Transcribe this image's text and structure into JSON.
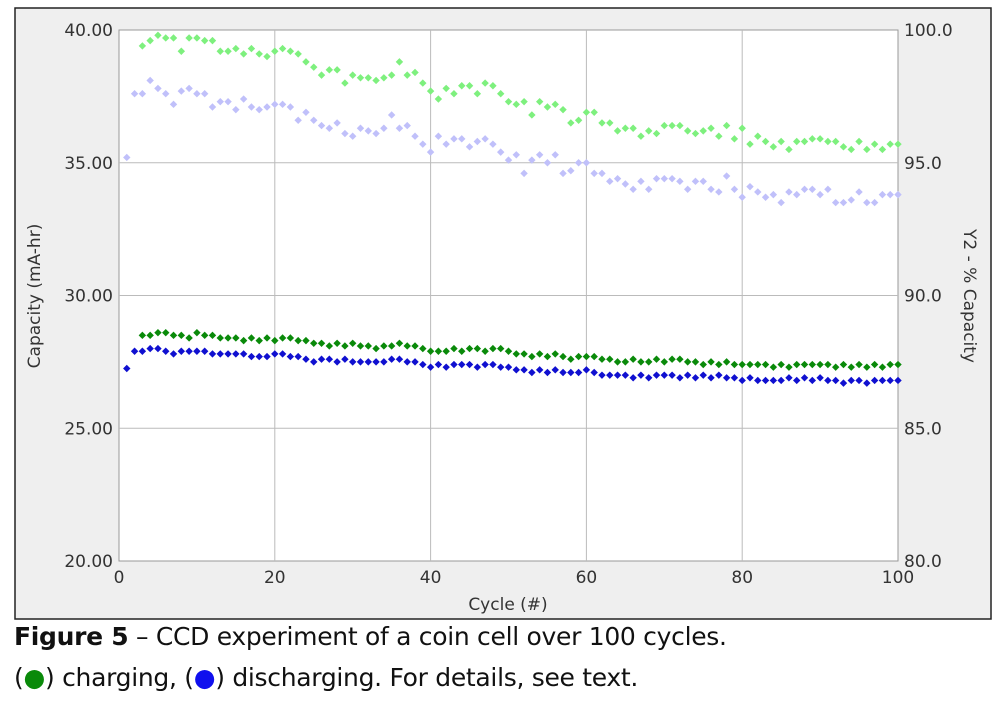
{
  "chart_data": {
    "type": "scatter",
    "xlabel": "Cycle (#)",
    "ylabel": "Capacity (mA-hr)",
    "y2label": "Y2 - % Capacity",
    "xlim": [
      0,
      100
    ],
    "ylim": [
      20,
      40
    ],
    "y2lim": [
      80,
      100
    ],
    "xticks": [
      "0",
      "20",
      "40",
      "60",
      "80",
      "100"
    ],
    "yticks": [
      "20.00",
      "25.00",
      "30.00",
      "35.00",
      "40.00"
    ],
    "y2ticks": [
      "80.0",
      "85.0",
      "90.0",
      "95.0",
      "100.0"
    ],
    "grid": true,
    "colors": {
      "charge": "#0a8a0a",
      "discharge": "#1010d0",
      "charge_pct": "#7ef07e",
      "discharge_pct": "#c0c0fa"
    },
    "series": [
      {
        "name": "charging",
        "axis": "y",
        "color": "#0a8a0a",
        "values": [
          null,
          null,
          28.5,
          28.5,
          28.6,
          28.6,
          28.5,
          28.5,
          28.4,
          28.6,
          28.5,
          28.5,
          28.4,
          28.4,
          28.4,
          28.3,
          28.4,
          28.3,
          28.4,
          28.3,
          28.4,
          28.4,
          28.3,
          28.3,
          28.2,
          28.2,
          28.1,
          28.2,
          28.1,
          28.2,
          28.1,
          28.1,
          28.0,
          28.1,
          28.1,
          28.2,
          28.1,
          28.1,
          28.0,
          27.9,
          27.9,
          27.9,
          28.0,
          27.9,
          28.0,
          28.0,
          27.9,
          28.0,
          28.0,
          27.9,
          27.8,
          27.8,
          27.7,
          27.8,
          27.7,
          27.8,
          27.7,
          27.6,
          27.7,
          27.7,
          27.7,
          27.6,
          27.6,
          27.5,
          27.5,
          27.6,
          27.5,
          27.5,
          27.6,
          27.5,
          27.6,
          27.6,
          27.5,
          27.5,
          27.4,
          27.5,
          27.4,
          27.5,
          27.4,
          27.4,
          27.4,
          27.4,
          27.4,
          27.3,
          27.4,
          27.3,
          27.4,
          27.4,
          27.4,
          27.4,
          27.4,
          27.3,
          27.4,
          27.3,
          27.4,
          27.3,
          27.4,
          27.3,
          27.4,
          27.4
        ]
      },
      {
        "name": "discharging",
        "axis": "y",
        "color": "#1010d0",
        "values": [
          27.25,
          27.9,
          27.9,
          28.0,
          28.0,
          27.9,
          27.8,
          27.9,
          27.9,
          27.9,
          27.9,
          27.8,
          27.8,
          27.8,
          27.8,
          27.8,
          27.7,
          27.7,
          27.7,
          27.8,
          27.8,
          27.7,
          27.7,
          27.6,
          27.5,
          27.6,
          27.6,
          27.5,
          27.6,
          27.5,
          27.5,
          27.5,
          27.5,
          27.5,
          27.6,
          27.6,
          27.5,
          27.5,
          27.4,
          27.3,
          27.4,
          27.3,
          27.4,
          27.4,
          27.4,
          27.3,
          27.4,
          27.4,
          27.3,
          27.3,
          27.2,
          27.2,
          27.1,
          27.2,
          27.1,
          27.2,
          27.1,
          27.1,
          27.1,
          27.2,
          27.1,
          27.0,
          27.0,
          27.0,
          27.0,
          26.9,
          27.0,
          26.9,
          27.0,
          27.0,
          27.0,
          26.9,
          27.0,
          26.9,
          27.0,
          26.9,
          27.0,
          26.9,
          26.9,
          26.8,
          26.9,
          26.8,
          26.8,
          26.8,
          26.8,
          26.9,
          26.8,
          26.9,
          26.8,
          26.9,
          26.8,
          26.8,
          26.7,
          26.8,
          26.8,
          26.7,
          26.8,
          26.8,
          26.8,
          26.8
        ]
      },
      {
        "name": "charging % capacity",
        "axis": "y2",
        "color": "#7ef07e",
        "values": [
          null,
          null,
          99.4,
          99.6,
          99.8,
          99.7,
          99.7,
          99.2,
          99.7,
          99.7,
          99.6,
          99.6,
          99.2,
          99.2,
          99.3,
          99.1,
          99.3,
          99.1,
          99.0,
          99.2,
          99.3,
          99.2,
          99.1,
          98.8,
          98.6,
          98.3,
          98.5,
          98.5,
          98.0,
          98.3,
          98.2,
          98.2,
          98.1,
          98.2,
          98.3,
          98.8,
          98.3,
          98.4,
          98.0,
          97.7,
          97.4,
          97.8,
          97.6,
          97.9,
          97.9,
          97.6,
          98.0,
          97.9,
          97.6,
          97.3,
          97.2,
          97.3,
          96.8,
          97.3,
          97.1,
          97.2,
          97.0,
          96.5,
          96.6,
          96.9,
          96.9,
          96.5,
          96.5,
          96.2,
          96.3,
          96.3,
          96.0,
          96.2,
          96.1,
          96.4,
          96.4,
          96.4,
          96.2,
          96.1,
          96.2,
          96.3,
          96.0,
          96.4,
          95.9,
          96.3,
          95.7,
          96.0,
          95.8,
          95.6,
          95.8,
          95.5,
          95.8,
          95.8,
          95.9,
          95.9,
          95.8,
          95.8,
          95.6,
          95.5,
          95.8,
          95.5,
          95.7,
          95.5,
          95.7,
          95.7
        ]
      },
      {
        "name": "discharging % capacity",
        "axis": "y2",
        "color": "#c0c0fa",
        "values": [
          95.2,
          97.6,
          97.6,
          98.1,
          97.8,
          97.6,
          97.2,
          97.7,
          97.8,
          97.6,
          97.6,
          97.1,
          97.3,
          97.3,
          97.0,
          97.4,
          97.1,
          97.0,
          97.1,
          97.2,
          97.2,
          97.1,
          96.6,
          96.9,
          96.6,
          96.4,
          96.3,
          96.5,
          96.1,
          96.0,
          96.3,
          96.2,
          96.1,
          96.3,
          96.8,
          96.3,
          96.4,
          96.0,
          95.7,
          95.4,
          96.0,
          95.7,
          95.9,
          95.9,
          95.6,
          95.8,
          95.9,
          95.7,
          95.4,
          95.1,
          95.3,
          94.6,
          95.1,
          95.3,
          95.0,
          95.3,
          94.6,
          94.7,
          95.0,
          95.0,
          94.6,
          94.6,
          94.3,
          94.4,
          94.2,
          94.0,
          94.3,
          94.0,
          94.4,
          94.4,
          94.4,
          94.3,
          94.0,
          94.3,
          94.3,
          94.0,
          93.9,
          94.5,
          94.0,
          93.7,
          94.1,
          93.9,
          93.7,
          93.8,
          93.5,
          93.9,
          93.8,
          94.0,
          94.0,
          93.8,
          94.0,
          93.5,
          93.5,
          93.6,
          93.9,
          93.5,
          93.5,
          93.8,
          93.8,
          93.8
        ]
      }
    ]
  },
  "caption": {
    "figure_label": "Figure 5",
    "line1": " – CCD experiment of a coin cell over 100 cycles.",
    "open1": "(",
    "dot": "●",
    "close_charging": ") charging, (",
    "close_discharging": ") discharging.  For details, see text."
  }
}
